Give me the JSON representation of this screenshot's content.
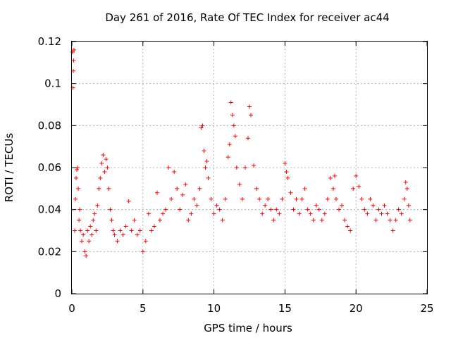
{
  "chart_data": {
    "type": "scatter",
    "title": "Day 261 of 2016, Rate Of TEC Index for receiver ac44",
    "xlabel": "GPS time / hours",
    "ylabel": "ROTI / TECUs",
    "xlim": [
      0,
      25
    ],
    "ylim": [
      0,
      0.12
    ],
    "xticks": [
      0,
      5,
      10,
      15,
      20,
      25
    ],
    "xtick_labels": [
      "0",
      "5",
      "10",
      "15",
      "20",
      "25"
    ],
    "yticks": [
      0,
      0.02,
      0.04,
      0.06,
      0.08,
      0.1,
      0.12
    ],
    "ytick_labels": [
      "0",
      "0.02",
      "0.04",
      "0.06",
      "0.08",
      "0.1",
      "0.12"
    ],
    "grid": true,
    "marker": "+",
    "color": "#ff0000",
    "series": [
      {
        "name": "ROTI",
        "x": [
          0.05,
          0.08,
          0.1,
          0.12,
          0.15,
          0.2,
          0.25,
          0.3,
          0.35,
          0.4,
          0.45,
          0.5,
          0.55,
          0.6,
          0.7,
          0.8,
          0.9,
          1.0,
          1.1,
          1.2,
          1.3,
          1.4,
          1.5,
          1.6,
          1.7,
          1.8,
          1.9,
          2.0,
          2.1,
          2.2,
          2.3,
          2.4,
          2.5,
          2.6,
          2.7,
          2.8,
          2.9,
          3.0,
          3.2,
          3.4,
          3.6,
          3.8,
          4.0,
          4.2,
          4.4,
          4.6,
          4.8,
          5.0,
          5.2,
          5.4,
          5.6,
          5.8,
          6.0,
          6.2,
          6.4,
          6.6,
          6.8,
          7.0,
          7.2,
          7.4,
          7.6,
          7.8,
          8.0,
          8.2,
          8.4,
          8.6,
          8.8,
          9.0,
          9.1,
          9.2,
          9.3,
          9.4,
          9.5,
          9.6,
          9.8,
          10.0,
          10.2,
          10.4,
          10.6,
          10.8,
          11.0,
          11.1,
          11.2,
          11.3,
          11.4,
          11.5,
          11.6,
          11.8,
          12.0,
          12.2,
          12.4,
          12.5,
          12.6,
          12.8,
          13.0,
          13.2,
          13.4,
          13.6,
          13.8,
          14.0,
          14.2,
          14.4,
          14.6,
          14.8,
          15.0,
          15.1,
          15.2,
          15.4,
          15.6,
          15.8,
          16.0,
          16.2,
          16.4,
          16.6,
          16.8,
          17.0,
          17.2,
          17.4,
          17.6,
          17.8,
          18.0,
          18.2,
          18.4,
          18.5,
          18.6,
          18.8,
          19.0,
          19.2,
          19.4,
          19.6,
          19.8,
          20.0,
          20.2,
          20.4,
          20.6,
          20.8,
          21.0,
          21.2,
          21.4,
          21.6,
          21.8,
          22.0,
          22.2,
          22.4,
          22.6,
          22.8,
          23.0,
          23.2,
          23.4,
          23.5,
          23.6,
          23.7,
          23.8
        ],
        "y": [
          0.115,
          0.098,
          0.106,
          0.111,
          0.116,
          0.03,
          0.045,
          0.055,
          0.059,
          0.06,
          0.05,
          0.035,
          0.04,
          0.03,
          0.025,
          0.028,
          0.02,
          0.018,
          0.03,
          0.025,
          0.032,
          0.028,
          0.035,
          0.038,
          0.03,
          0.042,
          0.05,
          0.055,
          0.062,
          0.066,
          0.058,
          0.064,
          0.06,
          0.05,
          0.04,
          0.035,
          0.03,
          0.028,
          0.025,
          0.03,
          0.028,
          0.032,
          0.044,
          0.03,
          0.035,
          0.028,
          0.03,
          0.02,
          0.025,
          0.038,
          0.03,
          0.032,
          0.048,
          0.035,
          0.038,
          0.04,
          0.06,
          0.045,
          0.058,
          0.05,
          0.04,
          0.047,
          0.052,
          0.035,
          0.038,
          0.045,
          0.042,
          0.05,
          0.079,
          0.08,
          0.068,
          0.06,
          0.063,
          0.055,
          0.045,
          0.038,
          0.042,
          0.04,
          0.035,
          0.045,
          0.065,
          0.071,
          0.091,
          0.085,
          0.08,
          0.075,
          0.06,
          0.052,
          0.045,
          0.06,
          0.074,
          0.089,
          0.085,
          0.061,
          0.05,
          0.045,
          0.038,
          0.042,
          0.045,
          0.04,
          0.035,
          0.04,
          0.038,
          0.045,
          0.062,
          0.058,
          0.055,
          0.048,
          0.04,
          0.045,
          0.038,
          0.045,
          0.05,
          0.04,
          0.038,
          0.035,
          0.042,
          0.04,
          0.035,
          0.038,
          0.045,
          0.055,
          0.05,
          0.056,
          0.045,
          0.04,
          0.042,
          0.035,
          0.032,
          0.03,
          0.05,
          0.056,
          0.051,
          0.045,
          0.04,
          0.038,
          0.045,
          0.042,
          0.035,
          0.04,
          0.038,
          0.042,
          0.038,
          0.035,
          0.03,
          0.035,
          0.04,
          0.038,
          0.045,
          0.053,
          0.05,
          0.042,
          0.035
        ]
      }
    ]
  }
}
